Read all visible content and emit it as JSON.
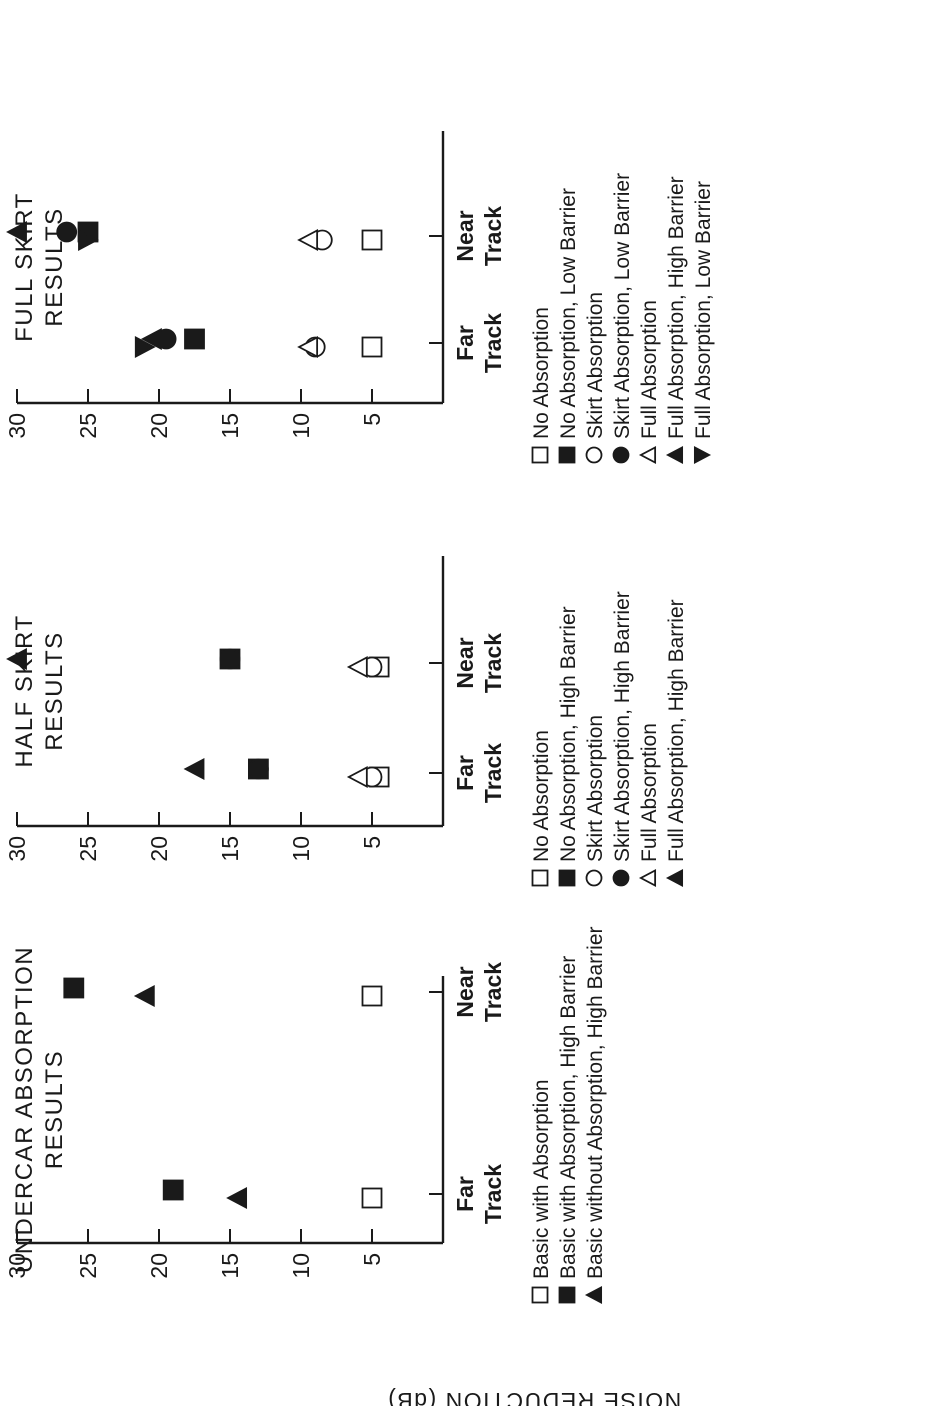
{
  "ylabel": "NOISE REDUCTION (dB)",
  "chart_data": [
    {
      "type": "scatter",
      "title_lines": [
        "UNDERCAR ABSORPTION",
        "RESULTS"
      ],
      "ylabel": "NOISE REDUCTION (dB)",
      "ylim": [
        0,
        30
      ],
      "yticks": [
        5,
        10,
        15,
        20,
        25,
        30
      ],
      "categories": [
        [
          "Far",
          "Track"
        ],
        [
          "Near",
          "Track"
        ]
      ],
      "legend_position": "bottom",
      "series": [
        {
          "name": "Basic with Absorption",
          "marker": "square-open",
          "values": [
            5,
            5
          ]
        },
        {
          "name": "Basic with Absorption, High Barrier",
          "marker": "square-filled",
          "values": [
            19,
            26
          ]
        },
        {
          "name": "Basic without Absorption, High Barrier",
          "marker": "triangle-up-filled",
          "values": [
            14.5,
            21
          ]
        }
      ]
    },
    {
      "type": "scatter",
      "title_lines": [
        "HALF SKIRT",
        "RESULTS"
      ],
      "ylim": [
        0,
        30
      ],
      "yticks": [
        5,
        10,
        15,
        20,
        25,
        30
      ],
      "categories": [
        [
          "Far",
          "Track"
        ],
        [
          "Near",
          "Track"
        ]
      ],
      "legend_position": "bottom",
      "series": [
        {
          "name": "No Absorption",
          "marker": "square-open",
          "values": [
            4.5,
            4.5
          ]
        },
        {
          "name": "No Absorption, High Barrier",
          "marker": "square-filled",
          "values": [
            13,
            15
          ]
        },
        {
          "name": "Skirt Absorption",
          "marker": "circle-open",
          "values": [
            5,
            5
          ]
        },
        {
          "name": "Skirt Absorption, High Barrier",
          "marker": "circle-filled",
          "values": [
            13,
            15
          ]
        },
        {
          "name": "Full Absorption",
          "marker": "triangle-up-open",
          "values": [
            6,
            6
          ]
        },
        {
          "name": "Full Absorption, High Barrier",
          "marker": "triangle-up-filled",
          "values": [
            17.5,
            30
          ]
        }
      ]
    },
    {
      "type": "scatter",
      "title_lines": [
        "FULL SKIRT",
        "RESULTS"
      ],
      "ylim": [
        0,
        30
      ],
      "yticks": [
        5,
        10,
        15,
        20,
        25,
        30
      ],
      "categories": [
        [
          "Far",
          "Track"
        ],
        [
          "Near",
          "Track"
        ]
      ],
      "legend_position": "bottom",
      "series": [
        {
          "name": "No Absorption",
          "marker": "square-open",
          "values": [
            5,
            5
          ]
        },
        {
          "name": "No Absorption, Low Barrier",
          "marker": "square-filled",
          "values": [
            17.5,
            25
          ]
        },
        {
          "name": "Skirt Absorption",
          "marker": "circle-open",
          "values": [
            9,
            8.5
          ]
        },
        {
          "name": "Skirt Absorption, Low Barrier",
          "marker": "circle-filled",
          "values": [
            19.5,
            26.5
          ]
        },
        {
          "name": "Full Absorption",
          "marker": "triangle-up-open",
          "values": [
            9.5,
            9.5
          ]
        },
        {
          "name": "Full Absorption, High Barrier",
          "marker": "triangle-up-filled",
          "values": [
            20.5,
            30
          ]
        },
        {
          "name": "Full Absorption,  Low Barrier",
          "marker": "triangle-down-filled",
          "values": [
            21,
            25
          ]
        }
      ]
    }
  ]
}
